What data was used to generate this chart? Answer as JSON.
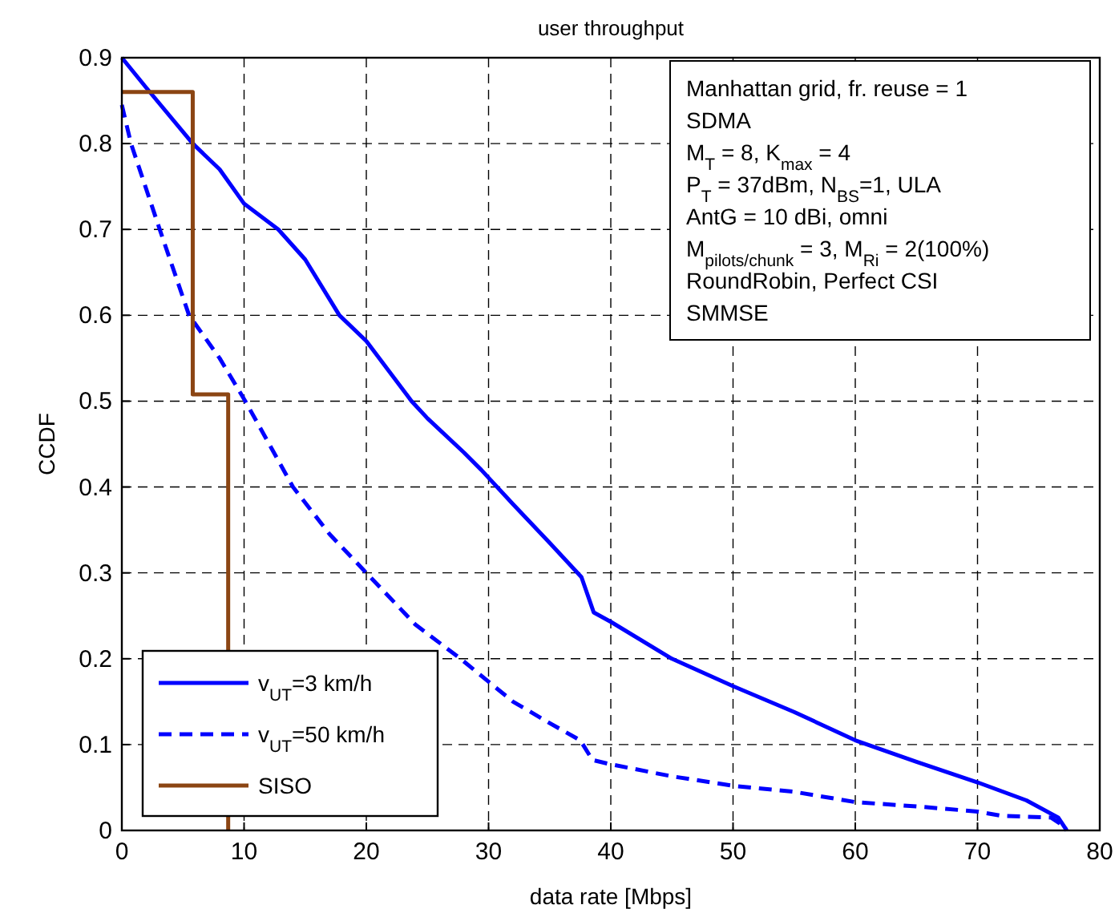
{
  "chart_data": {
    "type": "line",
    "title": "user throughput",
    "xlabel": "data rate [Mbps]",
    "ylabel": "CCDF",
    "xlim": [
      0,
      80
    ],
    "xticks": [
      0,
      10,
      20,
      30,
      40,
      50,
      60,
      70,
      80
    ],
    "ylim": [
      0,
      0.9
    ],
    "yticks": [
      0,
      0.1,
      0.2,
      0.3,
      0.4,
      0.5,
      0.6,
      0.7,
      0.8,
      0.9
    ],
    "grid": true,
    "legend": "bottom left",
    "series": [
      {
        "name": "v$_{UT}$=3 km/h",
        "color": "#0000ff",
        "line_style": "solid",
        "x": [
          0,
          2,
          5.8,
          8,
          10,
          12.8,
          15,
          17.8,
          20,
          23.7,
          25,
          28,
          29.4,
          32,
          35,
          37.6,
          38.6,
          40,
          45,
          50,
          55,
          60,
          65,
          70,
          74,
          76.6,
          77.3
        ],
        "values": [
          0.9,
          0.865,
          0.8,
          0.77,
          0.73,
          0.7,
          0.665,
          0.6,
          0.57,
          0.5,
          0.48,
          0.44,
          0.42,
          0.38,
          0.335,
          0.295,
          0.254,
          0.243,
          0.2,
          0.168,
          0.138,
          0.105,
          0.08,
          0.056,
          0.035,
          0.015,
          0
        ]
      },
      {
        "name": "v$_{UT}$=50 km/h",
        "color": "#0000ff",
        "line_style": "dashed",
        "x": [
          0,
          0.75,
          3.1,
          5.5,
          8,
          10.1,
          14,
          17,
          20,
          24,
          27.7,
          32,
          35,
          37.5,
          38.5,
          40,
          45,
          50,
          55,
          60,
          65,
          70,
          72,
          76,
          77.3
        ],
        "values": [
          0.845,
          0.8,
          0.7,
          0.6,
          0.55,
          0.5,
          0.4,
          0.345,
          0.3,
          0.24,
          0.2,
          0.15,
          0.125,
          0.105,
          0.082,
          0.077,
          0.063,
          0.052,
          0.045,
          0.033,
          0.028,
          0.022,
          0.017,
          0.015,
          0.003
        ]
      },
      {
        "name": "SISO",
        "color": "#8b4513",
        "type": "step",
        "line_style": "solid",
        "x": [
          0,
          5.8,
          8.7
        ],
        "values": [
          0.86,
          0.508,
          0
        ]
      }
    ],
    "annotations": [
      "Manhattan grid, fr. reuse = 1",
      "SDMA",
      "M$_{T}$ = 8, K$_{max}$ = 4",
      "P$_{T}$ = 37dBm, N$_{BS}$=1, ULA",
      "AntG = 10 dBi, omni",
      "M$_{pilots/chunk}$ = 3, M$_{Ri}$ = 2(100%)",
      "RoundRobin, Perfect CSI",
      "SMMSE"
    ]
  }
}
